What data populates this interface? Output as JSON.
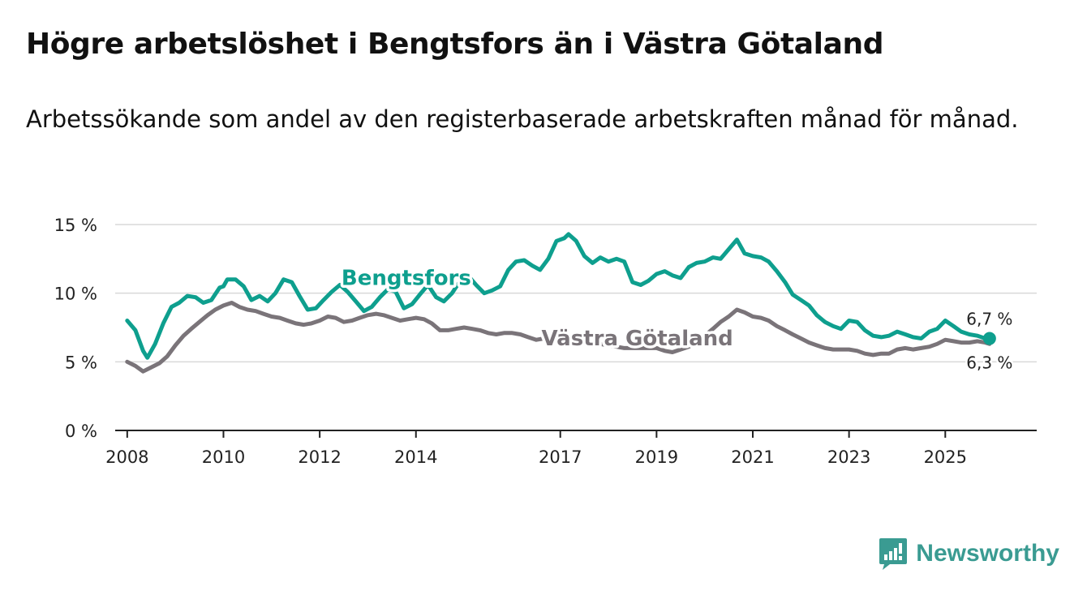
{
  "title": "Högre arbetslöshet i Bengtsfors än i Västra Götaland",
  "subtitle": "Arbetssökande som andel av den registerbaserade arbetskraften månad för månad.",
  "brand": "Newsworthy",
  "colors": {
    "bengtsfors": "#0e9f8e",
    "vastra": "#7a7479",
    "grid": "#d9d9d9",
    "axis": "#222222",
    "brand": "#3a9b92"
  },
  "chart_data": {
    "type": "line",
    "title": "Högre arbetslöshet i Bengtsfors än i Västra Götaland",
    "xlabel": "",
    "ylabel": "",
    "ylim": [
      0,
      15
    ],
    "xlim": [
      2007.75,
      2026.9
    ],
    "y_ticks": [
      0,
      5,
      10,
      15
    ],
    "y_tick_labels": [
      "0 %",
      "5 %",
      "10 %",
      "15 %"
    ],
    "x_ticks": [
      2008,
      2010,
      2012,
      2014,
      2017,
      2019,
      2021,
      2023,
      2025
    ],
    "x_tick_labels": [
      "2008",
      "2010",
      "2012",
      "2014",
      "2017",
      "2019",
      "2021",
      "2023",
      "2025"
    ],
    "grid": true,
    "series": [
      {
        "name": "Bengtsfors",
        "label": "Bengtsfors",
        "end_label": "6,7 %",
        "color": "#0e9f8e",
        "points": [
          [
            2008.0,
            8.0
          ],
          [
            2008.17,
            7.3
          ],
          [
            2008.33,
            5.8
          ],
          [
            2008.42,
            5.3
          ],
          [
            2008.58,
            6.3
          ],
          [
            2008.75,
            7.8
          ],
          [
            2008.92,
            9.0
          ],
          [
            2009.08,
            9.3
          ],
          [
            2009.25,
            9.8
          ],
          [
            2009.42,
            9.7
          ],
          [
            2009.58,
            9.3
          ],
          [
            2009.75,
            9.5
          ],
          [
            2009.92,
            10.4
          ],
          [
            2010.0,
            10.5
          ],
          [
            2010.08,
            11.0
          ],
          [
            2010.25,
            11.0
          ],
          [
            2010.42,
            10.5
          ],
          [
            2010.58,
            9.5
          ],
          [
            2010.75,
            9.8
          ],
          [
            2010.92,
            9.4
          ],
          [
            2011.08,
            10.0
          ],
          [
            2011.25,
            11.0
          ],
          [
            2011.42,
            10.8
          ],
          [
            2011.58,
            9.8
          ],
          [
            2011.75,
            8.8
          ],
          [
            2011.92,
            8.9
          ],
          [
            2012.08,
            9.5
          ],
          [
            2012.25,
            10.1
          ],
          [
            2012.42,
            10.6
          ],
          [
            2012.58,
            10.1
          ],
          [
            2012.75,
            9.4
          ],
          [
            2012.92,
            8.7
          ],
          [
            2013.08,
            9.0
          ],
          [
            2013.25,
            9.7
          ],
          [
            2013.42,
            10.3
          ],
          [
            2013.58,
            10.1
          ],
          [
            2013.75,
            8.9
          ],
          [
            2013.92,
            9.2
          ],
          [
            2014.08,
            9.9
          ],
          [
            2014.25,
            10.6
          ],
          [
            2014.42,
            9.7
          ],
          [
            2014.58,
            9.4
          ],
          [
            2014.75,
            10.0
          ],
          [
            2014.92,
            10.9
          ],
          [
            2015.08,
            11.3
          ],
          [
            2015.25,
            10.6
          ],
          [
            2015.42,
            10.0
          ],
          [
            2015.58,
            10.2
          ],
          [
            2015.75,
            10.5
          ],
          [
            2015.92,
            11.7
          ],
          [
            2016.08,
            12.3
          ],
          [
            2016.25,
            12.4
          ],
          [
            2016.42,
            12.0
          ],
          [
            2016.58,
            11.7
          ],
          [
            2016.75,
            12.5
          ],
          [
            2016.92,
            13.8
          ],
          [
            2017.08,
            14.0
          ],
          [
            2017.17,
            14.3
          ],
          [
            2017.33,
            13.8
          ],
          [
            2017.5,
            12.7
          ],
          [
            2017.67,
            12.2
          ],
          [
            2017.83,
            12.6
          ],
          [
            2018.0,
            12.3
          ],
          [
            2018.17,
            12.5
          ],
          [
            2018.33,
            12.3
          ],
          [
            2018.5,
            10.8
          ],
          [
            2018.67,
            10.6
          ],
          [
            2018.83,
            10.9
          ],
          [
            2019.0,
            11.4
          ],
          [
            2019.17,
            11.6
          ],
          [
            2019.33,
            11.3
          ],
          [
            2019.5,
            11.1
          ],
          [
            2019.67,
            11.9
          ],
          [
            2019.83,
            12.2
          ],
          [
            2020.0,
            12.3
          ],
          [
            2020.17,
            12.6
          ],
          [
            2020.33,
            12.5
          ],
          [
            2020.5,
            13.2
          ],
          [
            2020.67,
            13.9
          ],
          [
            2020.83,
            12.9
          ],
          [
            2021.0,
            12.7
          ],
          [
            2021.17,
            12.6
          ],
          [
            2021.33,
            12.3
          ],
          [
            2021.5,
            11.6
          ],
          [
            2021.67,
            10.8
          ],
          [
            2021.83,
            9.9
          ],
          [
            2022.0,
            9.5
          ],
          [
            2022.17,
            9.1
          ],
          [
            2022.33,
            8.4
          ],
          [
            2022.5,
            7.9
          ],
          [
            2022.67,
            7.6
          ],
          [
            2022.83,
            7.4
          ],
          [
            2023.0,
            8.0
          ],
          [
            2023.17,
            7.9
          ],
          [
            2023.33,
            7.3
          ],
          [
            2023.5,
            6.9
          ],
          [
            2023.67,
            6.8
          ],
          [
            2023.83,
            6.9
          ],
          [
            2024.0,
            7.2
          ],
          [
            2024.17,
            7.0
          ],
          [
            2024.33,
            6.8
          ],
          [
            2024.5,
            6.7
          ],
          [
            2024.67,
            7.2
          ],
          [
            2024.83,
            7.4
          ],
          [
            2025.0,
            8.0
          ],
          [
            2025.17,
            7.6
          ],
          [
            2025.33,
            7.2
          ],
          [
            2025.5,
            7.0
          ],
          [
            2025.67,
            6.9
          ],
          [
            2025.83,
            6.7
          ],
          [
            2025.92,
            6.7
          ]
        ]
      },
      {
        "name": "Västra Götaland",
        "label": "Västra Götaland",
        "end_label": "6,3 %",
        "color": "#7a7479",
        "points": [
          [
            2008.0,
            5.0
          ],
          [
            2008.17,
            4.7
          ],
          [
            2008.33,
            4.3
          ],
          [
            2008.5,
            4.6
          ],
          [
            2008.67,
            4.9
          ],
          [
            2008.83,
            5.4
          ],
          [
            2009.0,
            6.2
          ],
          [
            2009.17,
            6.9
          ],
          [
            2009.33,
            7.4
          ],
          [
            2009.5,
            7.9
          ],
          [
            2009.67,
            8.4
          ],
          [
            2009.83,
            8.8
          ],
          [
            2010.0,
            9.1
          ],
          [
            2010.17,
            9.3
          ],
          [
            2010.33,
            9.0
          ],
          [
            2010.5,
            8.8
          ],
          [
            2010.67,
            8.7
          ],
          [
            2010.83,
            8.5
          ],
          [
            2011.0,
            8.3
          ],
          [
            2011.17,
            8.2
          ],
          [
            2011.33,
            8.0
          ],
          [
            2011.5,
            7.8
          ],
          [
            2011.67,
            7.7
          ],
          [
            2011.83,
            7.8
          ],
          [
            2012.0,
            8.0
          ],
          [
            2012.17,
            8.3
          ],
          [
            2012.33,
            8.2
          ],
          [
            2012.5,
            7.9
          ],
          [
            2012.67,
            8.0
          ],
          [
            2012.83,
            8.2
          ],
          [
            2013.0,
            8.4
          ],
          [
            2013.17,
            8.5
          ],
          [
            2013.33,
            8.4
          ],
          [
            2013.5,
            8.2
          ],
          [
            2013.67,
            8.0
          ],
          [
            2013.83,
            8.1
          ],
          [
            2014.0,
            8.2
          ],
          [
            2014.17,
            8.1
          ],
          [
            2014.33,
            7.8
          ],
          [
            2014.5,
            7.3
          ],
          [
            2014.67,
            7.3
          ],
          [
            2014.83,
            7.4
          ],
          [
            2015.0,
            7.5
          ],
          [
            2015.17,
            7.4
          ],
          [
            2015.33,
            7.3
          ],
          [
            2015.5,
            7.1
          ],
          [
            2015.67,
            7.0
          ],
          [
            2015.83,
            7.1
          ],
          [
            2016.0,
            7.1
          ],
          [
            2016.17,
            7.0
          ],
          [
            2016.33,
            6.8
          ],
          [
            2016.5,
            6.6
          ],
          [
            2016.67,
            6.7
          ],
          [
            2016.83,
            6.8
          ],
          [
            2017.0,
            6.9
          ],
          [
            2017.17,
            6.7
          ],
          [
            2017.33,
            6.5
          ],
          [
            2017.5,
            6.4
          ],
          [
            2017.67,
            6.3
          ],
          [
            2017.83,
            6.3
          ],
          [
            2018.0,
            6.2
          ],
          [
            2018.17,
            6.1
          ],
          [
            2018.33,
            6.0
          ],
          [
            2018.5,
            6.0
          ],
          [
            2018.67,
            6.0
          ],
          [
            2018.83,
            6.0
          ],
          [
            2019.0,
            6.0
          ],
          [
            2019.17,
            5.8
          ],
          [
            2019.33,
            5.7
          ],
          [
            2019.5,
            5.9
          ],
          [
            2019.67,
            6.1
          ],
          [
            2019.83,
            6.4
          ],
          [
            2020.0,
            6.9
          ],
          [
            2020.17,
            7.4
          ],
          [
            2020.33,
            7.9
          ],
          [
            2020.5,
            8.3
          ],
          [
            2020.67,
            8.8
          ],
          [
            2020.83,
            8.6
          ],
          [
            2021.0,
            8.3
          ],
          [
            2021.17,
            8.2
          ],
          [
            2021.33,
            8.0
          ],
          [
            2021.5,
            7.6
          ],
          [
            2021.67,
            7.3
          ],
          [
            2021.83,
            7.0
          ],
          [
            2022.0,
            6.7
          ],
          [
            2022.17,
            6.4
          ],
          [
            2022.33,
            6.2
          ],
          [
            2022.5,
            6.0
          ],
          [
            2022.67,
            5.9
          ],
          [
            2022.83,
            5.9
          ],
          [
            2023.0,
            5.9
          ],
          [
            2023.17,
            5.8
          ],
          [
            2023.33,
            5.6
          ],
          [
            2023.5,
            5.5
          ],
          [
            2023.67,
            5.6
          ],
          [
            2023.83,
            5.6
          ],
          [
            2024.0,
            5.9
          ],
          [
            2024.17,
            6.0
          ],
          [
            2024.33,
            5.9
          ],
          [
            2024.5,
            6.0
          ],
          [
            2024.67,
            6.1
          ],
          [
            2024.83,
            6.3
          ],
          [
            2025.0,
            6.6
          ],
          [
            2025.17,
            6.5
          ],
          [
            2025.33,
            6.4
          ],
          [
            2025.5,
            6.4
          ],
          [
            2025.67,
            6.5
          ],
          [
            2025.83,
            6.4
          ],
          [
            2025.92,
            6.3
          ]
        ]
      }
    ]
  }
}
